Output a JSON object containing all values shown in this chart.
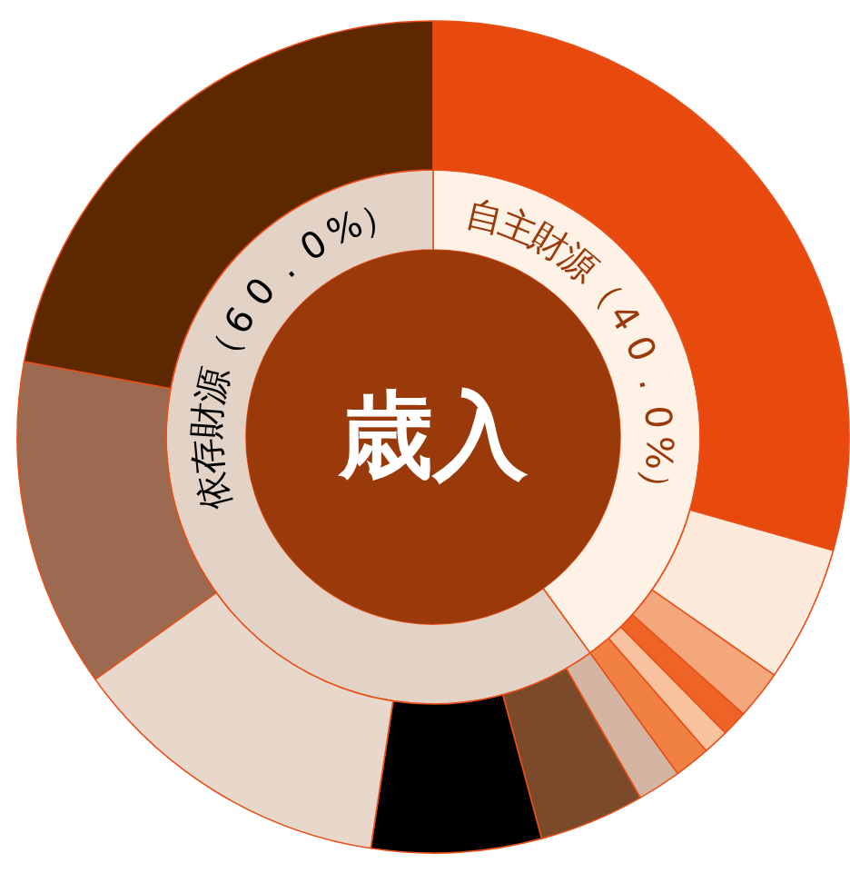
{
  "chart_data": {
    "type": "donut",
    "title": "歳入",
    "series": [
      {
        "values": [
          40.0,
          60.0
        ],
        "value_labels": [
          "自主財源（40.0%）",
          "依存財源（60.0%）"
        ],
        "colors": [
          "#fef1e6",
          "#e3d3c6"
        ]
      },
      {
        "values": [
          29.4,
          5.3,
          1.9,
          1.0,
          1.0,
          1.4,
          1.7,
          4.1,
          6.6,
          12.7,
          12.8,
          22.1
        ],
        "colors": [
          "#e8490c",
          "#fdeadb",
          "#f4a77a",
          "#ee6427",
          "#f9c29f",
          "#f08143",
          "#d4b5a3",
          "#7b4a2a",
          "#000000",
          "#e8d8cc",
          "#9b6a50",
          "#5d2700"
        ]
      }
    ]
  }
}
